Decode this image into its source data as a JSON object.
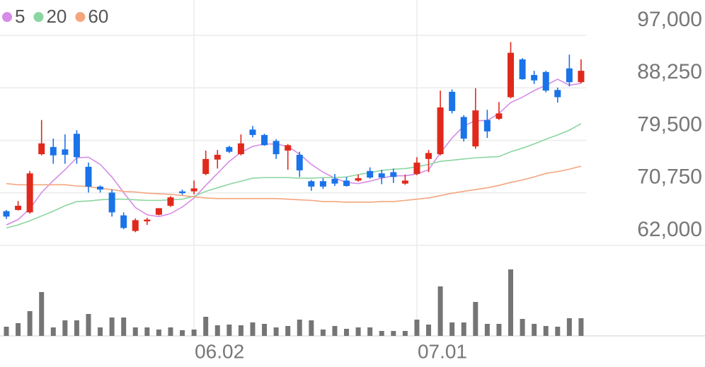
{
  "chart_data": {
    "type": "candlestick",
    "grid": true,
    "up_color": "#e0291c",
    "down_color": "#1a73e8",
    "categories": [
      null,
      null,
      null,
      null,
      null,
      null,
      null,
      null,
      null,
      null,
      null,
      null,
      null,
      null,
      null,
      null,
      "06.02",
      null,
      null,
      null,
      null,
      null,
      null,
      null,
      null,
      null,
      null,
      null,
      null,
      null,
      null,
      null,
      null,
      null,
      null,
      "07.01",
      null,
      null,
      null,
      null,
      null,
      null,
      null,
      null,
      null,
      null,
      null,
      null,
      null,
      null
    ],
    "open": [
      67700,
      67900,
      67500,
      77200,
      78400,
      78000,
      80600,
      75100,
      71800,
      70800,
      67000,
      64400,
      66000,
      67100,
      68600,
      71000,
      71000,
      73900,
      76300,
      78400,
      77200,
      81300,
      80400,
      79400,
      77800,
      77100,
      72700,
      72700,
      73100,
      72800,
      72800,
      74400,
      74000,
      74200,
      72300,
      73900,
      76400,
      77200,
      87600,
      83400,
      78500,
      82900,
      83100,
      86700,
      93000,
      90400,
      90900,
      87900,
      91500,
      89200
    ],
    "high": [
      67900,
      69400,
      74400,
      82900,
      79800,
      80500,
      81200,
      75800,
      72000,
      71300,
      67500,
      66500,
      66600,
      68200,
      70200,
      71300,
      72800,
      77800,
      77900,
      78600,
      80500,
      81900,
      80600,
      79700,
      78900,
      77600,
      72900,
      73200,
      73900,
      73400,
      73800,
      75000,
      74600,
      74800,
      73800,
      76700,
      77900,
      87800,
      88000,
      83700,
      88200,
      84600,
      85900,
      95900,
      93200,
      91100,
      91100,
      88300,
      93800,
      93000
    ],
    "low": [
      66400,
      67800,
      67300,
      77000,
      75600,
      75600,
      75600,
      70800,
      70800,
      66800,
      64700,
      64200,
      65400,
      67000,
      68400,
      70400,
      70500,
      73700,
      74800,
      77400,
      77000,
      80000,
      78600,
      76400,
      74600,
      73400,
      71100,
      71400,
      71900,
      71800,
      72600,
      73100,
      72200,
      72400,
      72100,
      73700,
      74200,
      77000,
      84000,
      79300,
      78100,
      79900,
      82900,
      86500,
      89600,
      88900,
      87500,
      85800,
      88500,
      89000
    ],
    "close": [
      66800,
      68600,
      74000,
      79000,
      77000,
      77100,
      76700,
      71800,
      71300,
      67500,
      64900,
      66200,
      66300,
      68200,
      70000,
      70700,
      71500,
      76400,
      77100,
      77600,
      79000,
      80400,
      78700,
      77200,
      78700,
      74500,
      71800,
      71800,
      72300,
      71900,
      73200,
      73300,
      73300,
      73400,
      72800,
      75800,
      77400,
      85000,
      84400,
      79800,
      84500,
      81000,
      84000,
      94100,
      89700,
      89500,
      87800,
      86700,
      89200,
      91100
    ],
    "ylim": [
      62000,
      102900
    ],
    "yticks": [
      {
        "value": 62000,
        "label": "62,000"
      },
      {
        "value": 70750,
        "label": "70,750"
      },
      {
        "value": 79500,
        "label": "79,500"
      },
      {
        "value": 88250,
        "label": "88,250"
      },
      {
        "value": 97000,
        "label": "97,000"
      }
    ],
    "series": [
      {
        "name": "5",
        "color": "#d58ce6",
        "values": [
          65400,
          66300,
          68100,
          70800,
          72800,
          74600,
          76600,
          76700,
          75500,
          73400,
          70800,
          68300,
          67100,
          66800,
          67300,
          68400,
          69900,
          72000,
          74000,
          76000,
          77500,
          78500,
          78900,
          78900,
          78500,
          77200,
          75500,
          74200,
          73200,
          72500,
          72300,
          72700,
          73200,
          73600,
          73600,
          73900,
          74600,
          77400,
          79900,
          81900,
          82800,
          82800,
          84000,
          85800,
          86700,
          87800,
          88700,
          89700,
          88700,
          89000
        ]
      },
      {
        "name": "20",
        "color": "#8bd6a0",
        "values": [
          64900,
          65400,
          66100,
          66900,
          67700,
          68600,
          69300,
          69400,
          69600,
          69700,
          69700,
          69600,
          69500,
          69500,
          69600,
          69700,
          70200,
          71000,
          71600,
          72200,
          72700,
          73200,
          73300,
          73300,
          73300,
          73200,
          73200,
          73300,
          73300,
          73400,
          73800,
          74100,
          74500,
          74700,
          74800,
          75100,
          75500,
          76000,
          76200,
          76400,
          76600,
          76700,
          76800,
          77600,
          78200,
          78900,
          79700,
          80400,
          81200,
          82300
        ]
      },
      {
        "name": "60",
        "color": "#f4a57e",
        "values": [
          72300,
          72100,
          72100,
          72100,
          72100,
          72100,
          71900,
          71800,
          71500,
          71300,
          71000,
          70900,
          70700,
          70600,
          70500,
          70300,
          70100,
          69900,
          69800,
          69800,
          69800,
          69800,
          69800,
          69800,
          69700,
          69600,
          69500,
          69300,
          69300,
          69200,
          69200,
          69200,
          69300,
          69300,
          69500,
          69700,
          69900,
          70300,
          70700,
          71000,
          71300,
          71600,
          72000,
          72500,
          72900,
          73400,
          74000,
          74300,
          74700,
          75200
        ]
      }
    ],
    "volume": {
      "color": "#757575",
      "ylim": [
        0,
        100
      ],
      "values": [
        13,
        18,
        35,
        62,
        12,
        22,
        22,
        31,
        12,
        26,
        26,
        12,
        12,
        9,
        12,
        8,
        9,
        27,
        15,
        16,
        15,
        19,
        17,
        12,
        14,
        23,
        22,
        9,
        14,
        10,
        12,
        12,
        7,
        7,
        7,
        23,
        16,
        70,
        19,
        19,
        48,
        17,
        17,
        94,
        24,
        17,
        14,
        13,
        25,
        25
      ]
    }
  }
}
